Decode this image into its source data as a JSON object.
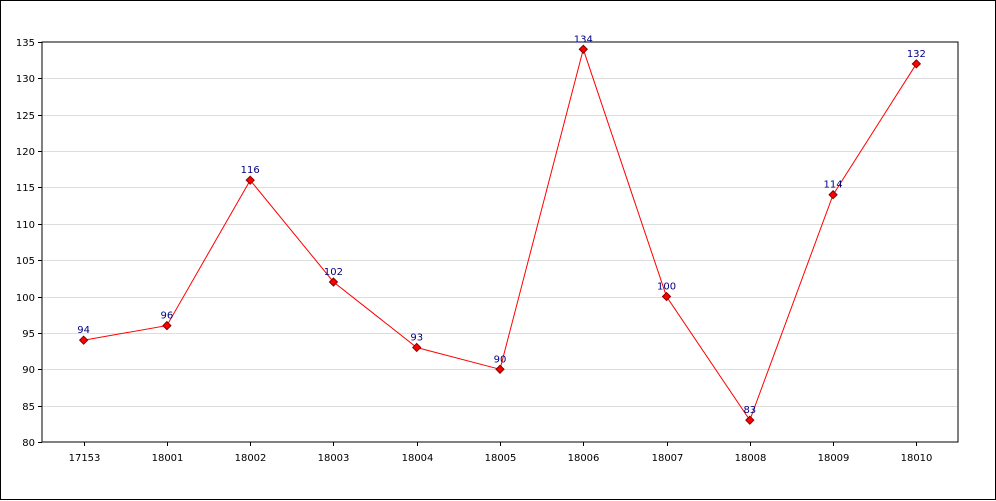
{
  "chart_data": {
    "type": "line",
    "title": "",
    "xlabel": "",
    "ylabel": "",
    "categories": [
      "17153",
      "18001",
      "18002",
      "18003",
      "18004",
      "18005",
      "18006",
      "18007",
      "18008",
      "18009",
      "18010"
    ],
    "series": [
      {
        "values": [
          94,
          96,
          116,
          102,
          93,
          90,
          134,
          100,
          83,
          114,
          132
        ]
      }
    ],
    "ylim": [
      80,
      135
    ],
    "yticks": [
      "80",
      "85",
      "90",
      "95",
      "100",
      "105",
      "110",
      "115",
      "120",
      "125",
      "130",
      "135"
    ],
    "grid": true,
    "legend": "none",
    "colors": {
      "line": "#ff0000",
      "marker_fill": "#ff0000",
      "marker_edge": "#800000",
      "data_label": "#000080",
      "grid": "#dddddd"
    }
  }
}
